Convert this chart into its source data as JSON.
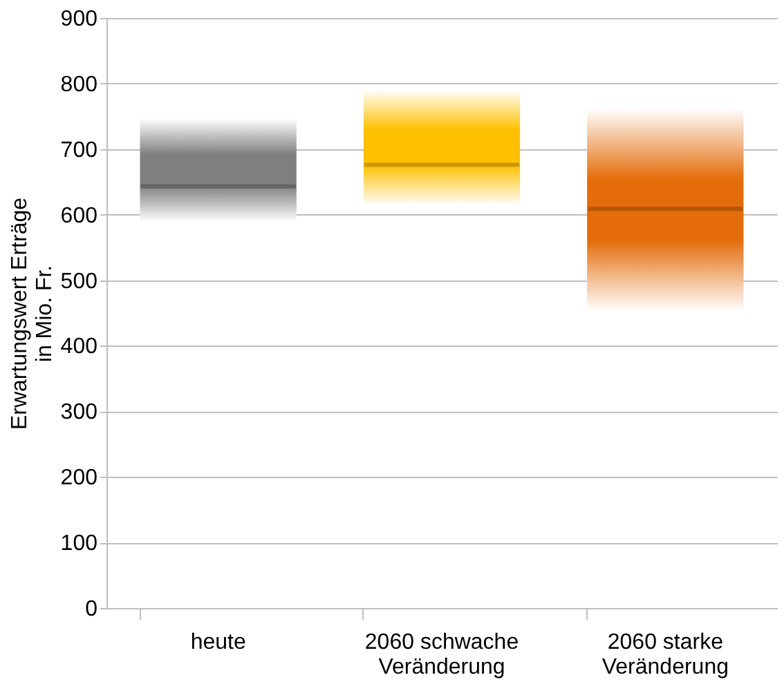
{
  "chart_data": {
    "type": "box",
    "ylabel": "Erwartungswert Erträge\nin Mio. Fr.",
    "categories": [
      "heute",
      "2060 schwache Veränderung",
      "2060 starke Veränderung"
    ],
    "boxes": [
      {
        "low": 589,
        "q1": 589,
        "median": 643,
        "q3": 747,
        "high": 747
      },
      {
        "low": 614,
        "q1": 614,
        "median": 676,
        "q3": 791,
        "high": 791
      },
      {
        "low": 453,
        "q1": 453,
        "median": 609,
        "q3": 762,
        "high": 762
      }
    ],
    "colors": [
      "#7f7f7f",
      "#ffc000",
      "#e46c0a"
    ],
    "ylim": [
      0,
      900
    ],
    "yticks": [
      0,
      100,
      200,
      300,
      400,
      500,
      600,
      700,
      800,
      900
    ],
    "grid": "y"
  }
}
